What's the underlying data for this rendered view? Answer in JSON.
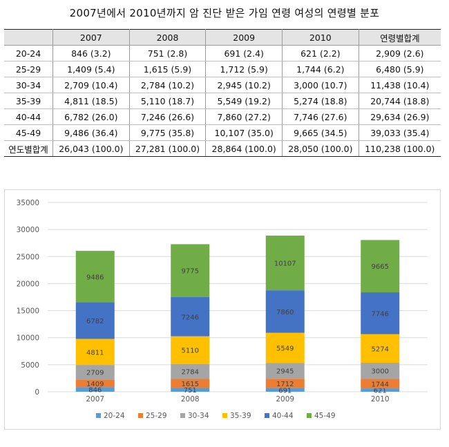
{
  "title": "2007년에서 2010년까지 암 진단 받은 가임 연령 여성의 연령별 분포",
  "table": {
    "corner": "",
    "headers": [
      "2007",
      "2008",
      "2009",
      "2010",
      "연령별합계"
    ],
    "rows": [
      {
        "label": "20-24",
        "cells": [
          "846 (3.2)",
          "751 (2.8)",
          "691 (2.4)",
          "621 (2.2)",
          "2,909 (2.6)"
        ]
      },
      {
        "label": "25-29",
        "cells": [
          "1,409 (5.4)",
          "1,615 (5.9)",
          "1,712 (5.9)",
          "1,744 (6.2)",
          "6,480 (5.9)"
        ]
      },
      {
        "label": "30-34",
        "cells": [
          "2,709 (10.4)",
          "2,784 (10.2)",
          "2,945 (10.2)",
          "3,000 (10.7)",
          "11,438 (10.4)"
        ]
      },
      {
        "label": "35-39",
        "cells": [
          "4,811 (18.5)",
          "5,110 (18.7)",
          "5,549 (19.2)",
          "5,274 (18.8)",
          "20,744 (18.8)"
        ]
      },
      {
        "label": "40-44",
        "cells": [
          "6,782 (26.0)",
          "7,246 (26.6)",
          "7,860 (27.2)",
          "7,746 (27.6)",
          "29,634 (26.9)"
        ]
      },
      {
        "label": "45-49",
        "cells": [
          "9,486 (36.4)",
          "9,775 (35.8)",
          "10,107 (35.0)",
          "9,665 (34.5)",
          "39,033 (35.4)"
        ]
      },
      {
        "label": "연도별합계",
        "cells": [
          "26,043 (100.0)",
          "27,281 (100.0)",
          "28,864 (100.0)",
          "28,050 (100.0)",
          "110,238 (100.0)"
        ]
      }
    ]
  },
  "chart_data": {
    "type": "bar",
    "stacked": true,
    "categories": [
      "2007",
      "2008",
      "2009",
      "2010"
    ],
    "series": [
      {
        "name": "20-24",
        "color": "#5b9bd5",
        "values": [
          846,
          751,
          691,
          621
        ]
      },
      {
        "name": "25-29",
        "color": "#ed7d31",
        "values": [
          1409,
          1615,
          1712,
          1744
        ]
      },
      {
        "name": "30-34",
        "color": "#a5a5a5",
        "values": [
          2709,
          2784,
          2945,
          3000
        ]
      },
      {
        "name": "35-39",
        "color": "#ffc000",
        "values": [
          4811,
          5110,
          5549,
          5274
        ]
      },
      {
        "name": "40-44",
        "color": "#4472c4",
        "values": [
          6782,
          7246,
          7860,
          7746
        ]
      },
      {
        "name": "45-49",
        "color": "#70ad47",
        "values": [
          9486,
          9775,
          10107,
          9665
        ]
      }
    ],
    "yticks": [
      "0",
      "5000",
      "10000",
      "15000",
      "20000",
      "25000",
      "30000",
      "35000"
    ],
    "ylim": [
      0,
      35000
    ],
    "grid": true,
    "legend": "bottom",
    "data_labels": true
  }
}
